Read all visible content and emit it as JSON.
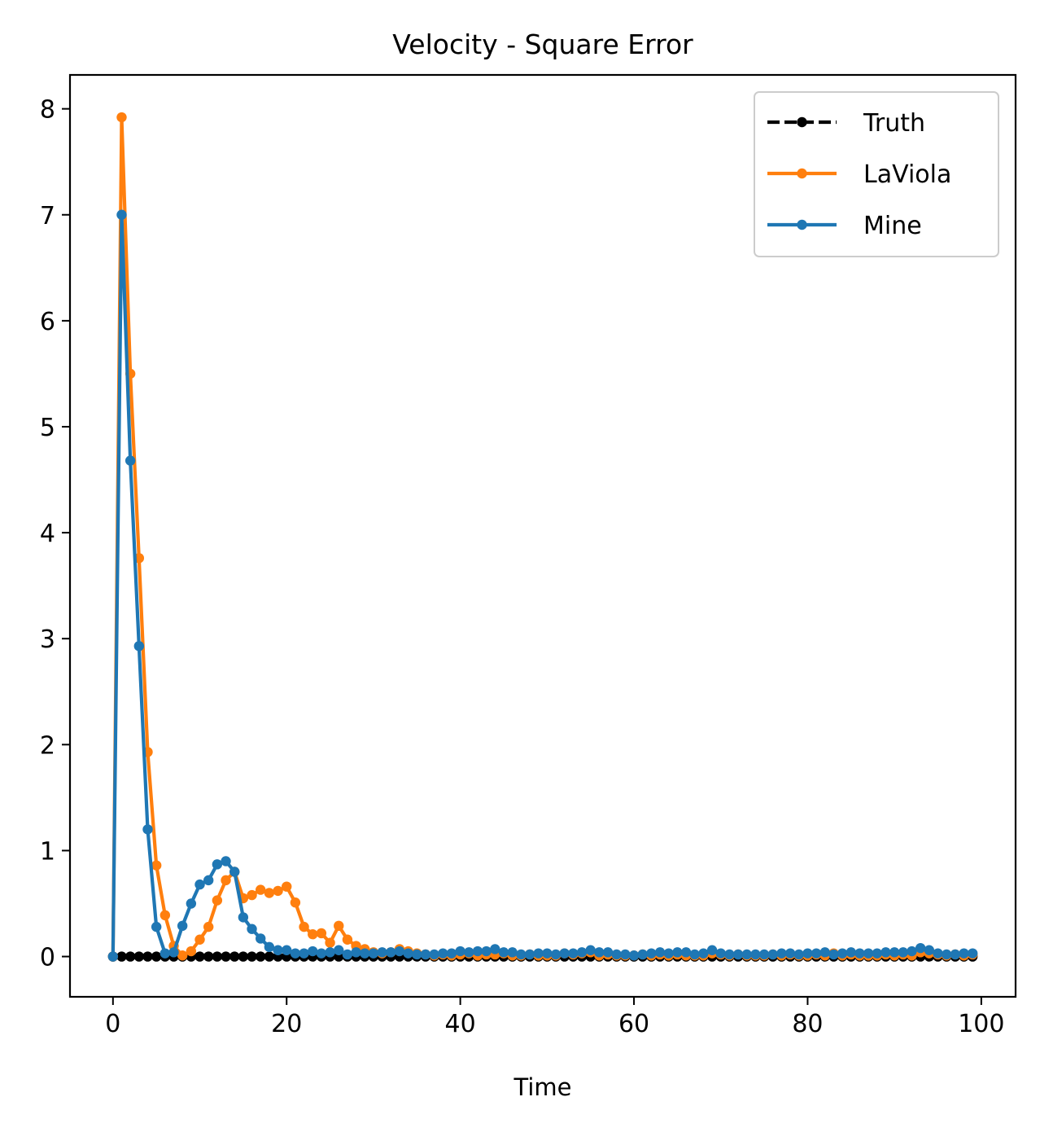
{
  "chart_data": {
    "type": "line",
    "title": "Velocity - Square Error",
    "xlabel": "Time",
    "ylabel": "",
    "xlim": [
      -4.95,
      103.95
    ],
    "ylim": [
      -0.38,
      8.32
    ],
    "xticks": [
      0,
      20,
      40,
      60,
      80,
      100
    ],
    "yticks": [
      0,
      1,
      2,
      3,
      4,
      5,
      6,
      7,
      8
    ],
    "grid": false,
    "legend_position": "top-right",
    "series": [
      {
        "name": "Truth",
        "color": "#000000",
        "line_style": "dashed",
        "marker": "circle",
        "x": [
          0,
          1,
          2,
          3,
          4,
          5,
          6,
          7,
          8,
          9,
          10,
          11,
          12,
          13,
          14,
          15,
          16,
          17,
          18,
          19,
          20,
          21,
          22,
          23,
          24,
          25,
          26,
          27,
          28,
          29,
          30,
          31,
          32,
          33,
          34,
          35,
          36,
          37,
          38,
          39,
          40,
          41,
          42,
          43,
          44,
          45,
          46,
          47,
          48,
          49,
          50,
          51,
          52,
          53,
          54,
          55,
          56,
          57,
          58,
          59,
          60,
          61,
          62,
          63,
          64,
          65,
          66,
          67,
          68,
          69,
          70,
          71,
          72,
          73,
          74,
          75,
          76,
          77,
          78,
          79,
          80,
          81,
          82,
          83,
          84,
          85,
          86,
          87,
          88,
          89,
          90,
          91,
          92,
          93,
          94,
          95,
          96,
          97,
          98,
          99
        ],
        "values": [
          0,
          0,
          0,
          0,
          0,
          0,
          0,
          0,
          0,
          0,
          0,
          0,
          0,
          0,
          0,
          0,
          0,
          0,
          0,
          0,
          0,
          0,
          0,
          0,
          0,
          0,
          0,
          0,
          0,
          0,
          0,
          0,
          0,
          0,
          0,
          0,
          0,
          0,
          0,
          0,
          0,
          0,
          0,
          0,
          0,
          0,
          0,
          0,
          0,
          0,
          0,
          0,
          0,
          0,
          0,
          0,
          0,
          0,
          0,
          0,
          0,
          0,
          0,
          0,
          0,
          0,
          0,
          0,
          0,
          0,
          0,
          0,
          0,
          0,
          0,
          0,
          0,
          0,
          0,
          0,
          0,
          0,
          0,
          0,
          0,
          0,
          0,
          0,
          0,
          0,
          0,
          0,
          0,
          0,
          0,
          0,
          0,
          0,
          0,
          0
        ]
      },
      {
        "name": "LaViola",
        "color": "#ff7f0e",
        "line_style": "solid",
        "marker": "circle",
        "x": [
          0,
          1,
          2,
          3,
          4,
          5,
          6,
          7,
          8,
          9,
          10,
          11,
          12,
          13,
          14,
          15,
          16,
          17,
          18,
          19,
          20,
          21,
          22,
          23,
          24,
          25,
          26,
          27,
          28,
          29,
          30,
          31,
          32,
          33,
          34,
          35,
          36,
          37,
          38,
          39,
          40,
          41,
          42,
          43,
          44,
          45,
          46,
          47,
          48,
          49,
          50,
          51,
          52,
          53,
          54,
          55,
          56,
          57,
          58,
          59,
          60,
          61,
          62,
          63,
          64,
          65,
          66,
          67,
          68,
          69,
          70,
          71,
          72,
          73,
          74,
          75,
          76,
          77,
          78,
          79,
          80,
          81,
          82,
          83,
          84,
          85,
          86,
          87,
          88,
          89,
          90,
          91,
          92,
          93,
          94,
          95,
          96,
          97,
          98,
          99
        ],
        "values": [
          0,
          7.92,
          5.5,
          3.76,
          1.93,
          0.86,
          0.39,
          0.1,
          0.01,
          0.05,
          0.16,
          0.28,
          0.53,
          0.72,
          0.8,
          0.55,
          0.58,
          0.63,
          0.6,
          0.62,
          0.66,
          0.51,
          0.28,
          0.21,
          0.22,
          0.13,
          0.29,
          0.16,
          0.1,
          0.07,
          0.04,
          0.03,
          0.04,
          0.07,
          0.05,
          0.03,
          0.02,
          0.01,
          0.02,
          0.01,
          0.02,
          0.03,
          0.01,
          0.02,
          0.02,
          0.03,
          0.01,
          0.01,
          0.02,
          0.01,
          0.01,
          0.01,
          0.03,
          0.02,
          0.03,
          0.04,
          0.01,
          0.02,
          0.01,
          0.01,
          0.01,
          0.02,
          0.01,
          0.02,
          0.01,
          0.02,
          0.01,
          0.01,
          0.01,
          0.03,
          0.02,
          0.01,
          0.02,
          0.01,
          0.01,
          0.01,
          0.02,
          0.01,
          0.02,
          0.01,
          0.01,
          0.02,
          0.01,
          0.03,
          0.01,
          0.02,
          0.01,
          0.01,
          0.01,
          0.02,
          0.01,
          0.02,
          0.01,
          0.04,
          0.03,
          0.02,
          0.01,
          0.02,
          0.01,
          0.02
        ]
      },
      {
        "name": "Mine",
        "color": "#1f77b4",
        "line_style": "solid",
        "marker": "circle",
        "x": [
          0,
          1,
          2,
          3,
          4,
          5,
          6,
          7,
          8,
          9,
          10,
          11,
          12,
          13,
          14,
          15,
          16,
          17,
          18,
          19,
          20,
          21,
          22,
          23,
          24,
          25,
          26,
          27,
          28,
          29,
          30,
          31,
          32,
          33,
          34,
          35,
          36,
          37,
          38,
          39,
          40,
          41,
          42,
          43,
          44,
          45,
          46,
          47,
          48,
          49,
          50,
          51,
          52,
          53,
          54,
          55,
          56,
          57,
          58,
          59,
          60,
          61,
          62,
          63,
          64,
          65,
          66,
          67,
          68,
          69,
          70,
          71,
          72,
          73,
          74,
          75,
          76,
          77,
          78,
          79,
          80,
          81,
          82,
          83,
          84,
          85,
          86,
          87,
          88,
          89,
          90,
          91,
          92,
          93,
          94,
          95,
          96,
          97,
          98,
          99
        ],
        "values": [
          0,
          7.0,
          4.68,
          2.93,
          1.2,
          0.28,
          0.03,
          0.04,
          0.29,
          0.5,
          0.68,
          0.72,
          0.87,
          0.9,
          0.8,
          0.37,
          0.26,
          0.17,
          0.09,
          0.06,
          0.06,
          0.03,
          0.03,
          0.05,
          0.03,
          0.04,
          0.06,
          0.02,
          0.04,
          0.03,
          0.03,
          0.04,
          0.04,
          0.05,
          0.03,
          0.02,
          0.02,
          0.02,
          0.03,
          0.03,
          0.05,
          0.04,
          0.05,
          0.05,
          0.07,
          0.04,
          0.04,
          0.02,
          0.02,
          0.03,
          0.03,
          0.02,
          0.03,
          0.03,
          0.04,
          0.06,
          0.04,
          0.04,
          0.02,
          0.02,
          0.01,
          0.02,
          0.03,
          0.04,
          0.03,
          0.04,
          0.04,
          0.02,
          0.03,
          0.06,
          0.03,
          0.02,
          0.02,
          0.02,
          0.02,
          0.02,
          0.02,
          0.03,
          0.03,
          0.02,
          0.03,
          0.03,
          0.04,
          0.02,
          0.03,
          0.04,
          0.03,
          0.03,
          0.03,
          0.04,
          0.04,
          0.04,
          0.05,
          0.08,
          0.06,
          0.03,
          0.02,
          0.02,
          0.03,
          0.03
        ]
      }
    ]
  }
}
